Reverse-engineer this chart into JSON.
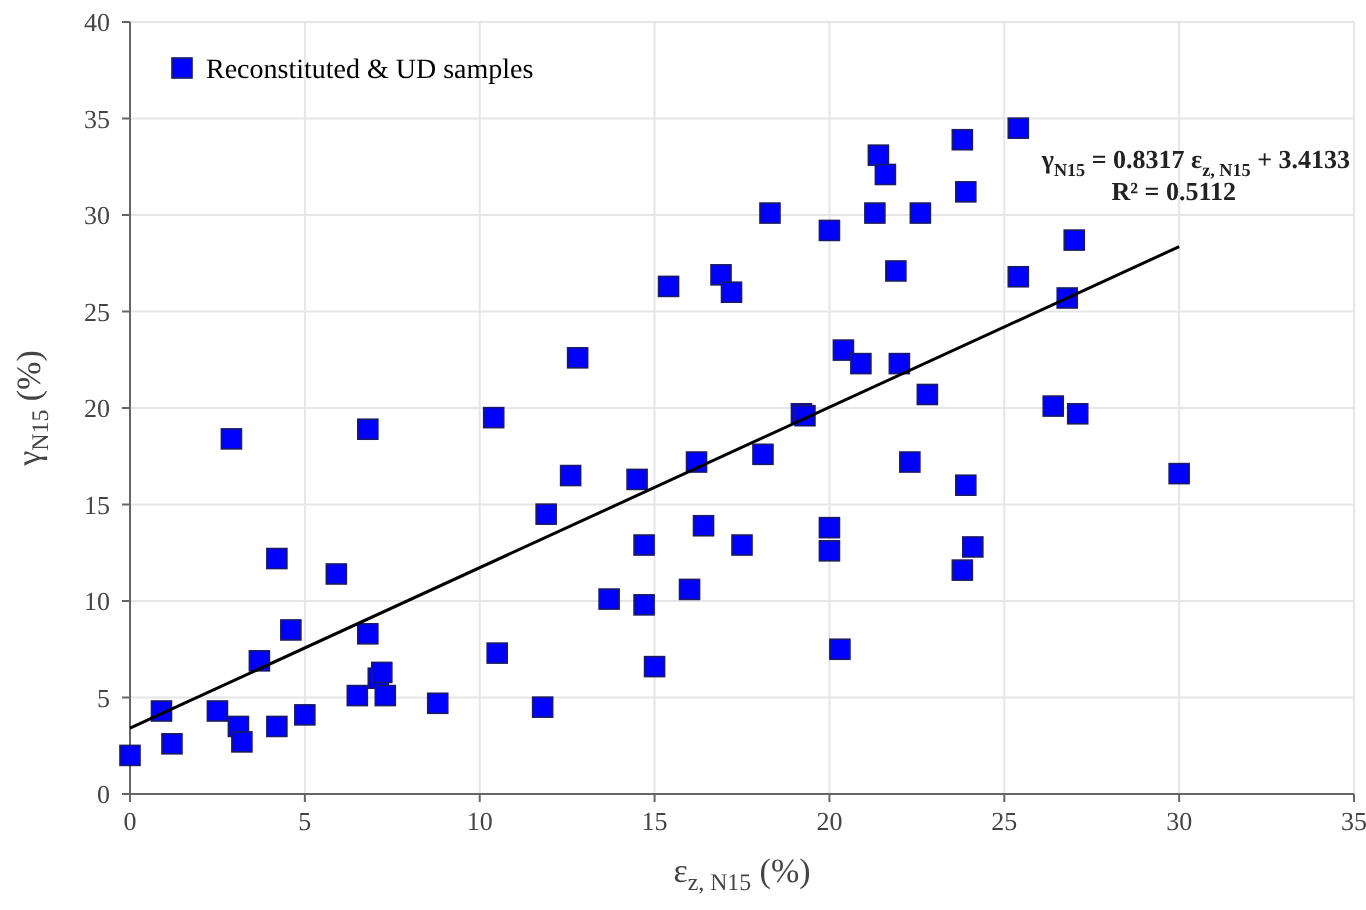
{
  "chart_data": {
    "type": "scatter",
    "xlabel": "ε$_{z, N15}$ (%)",
    "ylabel": "γ$_{N15}$ (%)",
    "xlim": [
      0,
      35
    ],
    "xticks": [
      0,
      5,
      10,
      15,
      20,
      25,
      30,
      35
    ],
    "ylim": [
      0,
      40
    ],
    "yticks": [
      0,
      5,
      10,
      15,
      20,
      25,
      30,
      35,
      40
    ],
    "grid": true,
    "legend": "top left",
    "marker": "square",
    "annotations": [
      "γ$_{N15}$ = 0.8317 ε$_{z, N15}$ + 3.4133",
      "R² = 0.5112"
    ],
    "series": [
      {
        "name": "Reconstituted & UD samples",
        "color": "#0000ff",
        "x": [
          0,
          0.9,
          1.2,
          2.5,
          2.9,
          3.1,
          3.2,
          3.7,
          4.2,
          4.2,
          4.6,
          5.0,
          5.9,
          6.5,
          6.8,
          6.8,
          7.1,
          7.2,
          7.3,
          8.8,
          10.4,
          10.5,
          11.8,
          11.9,
          12.6,
          12.8,
          13.7,
          14.5,
          14.7,
          14.7,
          15.0,
          15.4,
          16.0,
          16.2,
          16.4,
          16.9,
          17.2,
          17.5,
          18.1,
          18.3,
          19.2,
          19.3,
          20.0,
          20.0,
          20.0,
          20.3,
          20.4,
          20.9,
          21.3,
          21.4,
          21.6,
          21.9,
          22.0,
          22.3,
          22.6,
          22.8,
          23.8,
          23.8,
          23.9,
          23.9,
          24.1,
          25.4,
          25.4,
          26.4,
          26.8,
          27.0,
          27.1,
          30.0
        ],
        "values": [
          2,
          4.3,
          2.6,
          4.3,
          18.4,
          3.5,
          2.7,
          6.9,
          12.2,
          3.5,
          8.5,
          4.1,
          11.4,
          5.1,
          18.9,
          8.3,
          6.0,
          6.3,
          5.1,
          4.7,
          19.5,
          7.3,
          4.5,
          14.5,
          16.5,
          22.6,
          10.1,
          16.3,
          12.9,
          9.8,
          6.6,
          26.3,
          10.6,
          17.2,
          13.9,
          26.9,
          26.0,
          12.9,
          17.6,
          30.1,
          19.7,
          19.6,
          29.2,
          13.8,
          12.6,
          7.5,
          23.0,
          22.3,
          30.1,
          33.1,
          32.1,
          27.1,
          22.3,
          17.2,
          30.1,
          20.7,
          33.9,
          11.6,
          31.2,
          16.0,
          12.8,
          34.5,
          26.8,
          20.1,
          25.7,
          28.7,
          19.7,
          16.6
        ]
      },
      {
        "color": "#000000",
        "type": "line",
        "marker": "none",
        "line_style": "solid",
        "x": [
          0,
          30
        ],
        "values": [
          3.41,
          28.36
        ]
      }
    ]
  }
}
